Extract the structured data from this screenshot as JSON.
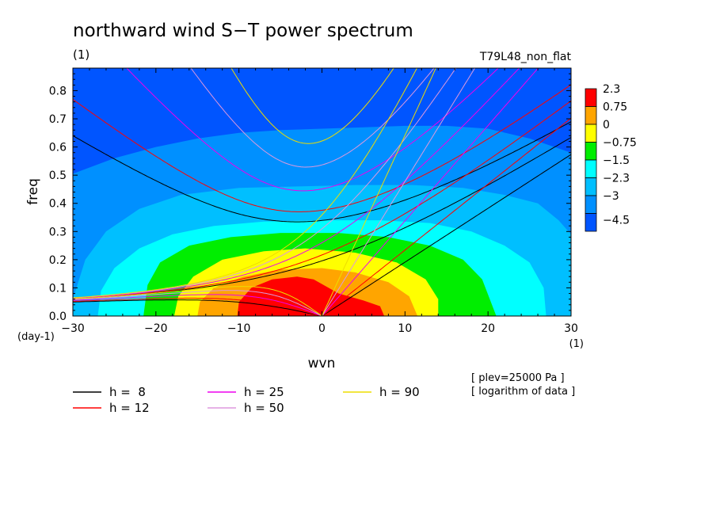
{
  "chart_data": {
    "type": "heatmap",
    "title": "northward wind S−T power spectrum",
    "subtitle_left": "(1)",
    "subtitle_right": "T79L48_non_flat",
    "xlabel": "wvn",
    "ylabel": "freq",
    "x_unit": "(1)",
    "y_unit": "(day-1)",
    "xlim": [
      -30,
      30
    ],
    "ylim": [
      0,
      0.88
    ],
    "x_ticks": [
      -30,
      -20,
      -10,
      0,
      10,
      20,
      30
    ],
    "x_tick_labels": [
      "−30",
      "−20",
      "−10",
      "0",
      "10",
      "20",
      "30"
    ],
    "y_ticks": [
      0,
      0.1,
      0.2,
      0.3,
      0.4,
      0.5,
      0.6,
      0.7,
      0.8
    ],
    "y_tick_labels": [
      "0.0",
      "0.1",
      "0.2",
      "0.3",
      "0.4",
      "0.5",
      "0.6",
      "0.7",
      "0.8"
    ],
    "colorbar": {
      "labels": [
        "2.3",
        "0.75",
        "0",
        "−0.75",
        "−1.5",
        "−2.3",
        "−3",
        "−4.5"
      ],
      "colors": [
        "#ff0000",
        "#ffa500",
        "#ffff00",
        "#00ee00",
        "#00ffff",
        "#00bfff",
        "#0090ff",
        "#0055ff"
      ]
    },
    "contour_fills": [
      {
        "level": "−3",
        "color": "#0090ff"
      },
      {
        "level": "−2.3",
        "color": "#00bfff"
      },
      {
        "level": "−1.5",
        "color": "#00ffff"
      },
      {
        "level": "−0.75",
        "color": "#00ee00"
      },
      {
        "level": "0",
        "color": "#ffff00"
      },
      {
        "level": "0.75",
        "color": "#ffa500"
      },
      {
        "level": "2.3",
        "color": "#ff0000"
      }
    ],
    "background_color": "#0055ff",
    "dispersion_curves": [
      {
        "name": "h =  8",
        "h": 8,
        "color": "#000000"
      },
      {
        "name": "h = 12",
        "h": 12,
        "color": "#ff0000"
      },
      {
        "name": "h = 25",
        "h": 25,
        "color": "#ee00ee"
      },
      {
        "name": "h = 50",
        "h": 50,
        "color": "#dd99dd"
      },
      {
        "name": "h = 90",
        "h": 90,
        "color": "#eedd00"
      }
    ],
    "notes": [
      "[ plev=25000 Pa ]",
      "[ logarithm of data ]"
    ]
  }
}
